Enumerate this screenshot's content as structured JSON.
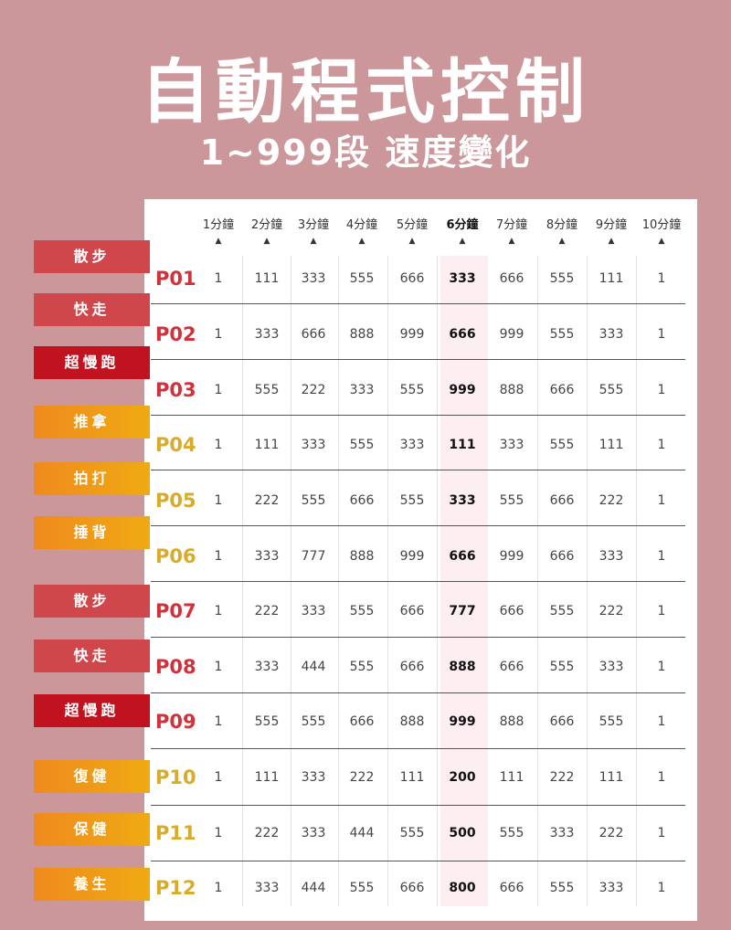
{
  "title": "自動程式控制",
  "subtitle": "1~999段  速度變化",
  "colors": {
    "background": "#cc979a",
    "red_tag": "#cf474a",
    "crimson_tag": "#c1121f",
    "orange_tag": "#ef8a1e",
    "red_label": "#d1313a",
    "gold_label": "#d8ab2a",
    "highlight_column": "#fdeef2"
  },
  "header": {
    "columns": [
      "1分鐘",
      "2分鐘",
      "3分鐘",
      "4分鐘",
      "5分鐘",
      "6分鐘",
      "7分鐘",
      "8分鐘",
      "9分鐘",
      "10分鐘"
    ],
    "arrow": "▲",
    "highlight_index": 5
  },
  "tags": [
    {
      "label": "散步",
      "color": "red"
    },
    {
      "label": "快走",
      "color": "red"
    },
    {
      "label": "超慢跑",
      "color": "crimson"
    },
    {
      "label": "推拿",
      "color": "orange"
    },
    {
      "label": "拍打",
      "color": "orange"
    },
    {
      "label": "捶背",
      "color": "orange"
    },
    {
      "label": "散步",
      "color": "red"
    },
    {
      "label": "快走",
      "color": "red"
    },
    {
      "label": "超慢跑",
      "color": "crimson"
    },
    {
      "label": "復健",
      "color": "orange"
    },
    {
      "label": "保健",
      "color": "orange"
    },
    {
      "label": "養生",
      "color": "orange"
    }
  ],
  "rows": [
    {
      "label": "P01",
      "label_color": "red",
      "values": [
        "1",
        "111",
        "333",
        "555",
        "666",
        "333",
        "666",
        "555",
        "111",
        "1"
      ]
    },
    {
      "label": "P02",
      "label_color": "red",
      "values": [
        "1",
        "333",
        "666",
        "888",
        "999",
        "666",
        "999",
        "555",
        "333",
        "1"
      ]
    },
    {
      "label": "P03",
      "label_color": "red",
      "values": [
        "1",
        "555",
        "222",
        "333",
        "555",
        "999",
        "888",
        "666",
        "555",
        "1"
      ]
    },
    {
      "label": "P04",
      "label_color": "gold",
      "values": [
        "1",
        "111",
        "333",
        "555",
        "333",
        "111",
        "333",
        "555",
        "111",
        "1"
      ]
    },
    {
      "label": "P05",
      "label_color": "gold",
      "values": [
        "1",
        "222",
        "555",
        "666",
        "555",
        "333",
        "555",
        "666",
        "222",
        "1"
      ]
    },
    {
      "label": "P06",
      "label_color": "gold",
      "values": [
        "1",
        "333",
        "777",
        "888",
        "999",
        "666",
        "999",
        "666",
        "333",
        "1"
      ]
    },
    {
      "label": "P07",
      "label_color": "red",
      "values": [
        "1",
        "222",
        "333",
        "555",
        "666",
        "777",
        "666",
        "555",
        "222",
        "1"
      ]
    },
    {
      "label": "P08",
      "label_color": "red",
      "values": [
        "1",
        "333",
        "444",
        "555",
        "666",
        "888",
        "666",
        "555",
        "333",
        "1"
      ]
    },
    {
      "label": "P09",
      "label_color": "red",
      "values": [
        "1",
        "555",
        "555",
        "666",
        "888",
        "999",
        "888",
        "666",
        "555",
        "1"
      ]
    },
    {
      "label": "P10",
      "label_color": "gold",
      "values": [
        "1",
        "111",
        "333",
        "222",
        "111",
        "200",
        "111",
        "222",
        "111",
        "1"
      ]
    },
    {
      "label": "P11",
      "label_color": "gold",
      "values": [
        "1",
        "222",
        "333",
        "444",
        "555",
        "500",
        "555",
        "333",
        "222",
        "1"
      ]
    },
    {
      "label": "P12",
      "label_color": "gold",
      "values": [
        "1",
        "333",
        "444",
        "555",
        "666",
        "800",
        "666",
        "555",
        "333",
        "1"
      ]
    }
  ]
}
